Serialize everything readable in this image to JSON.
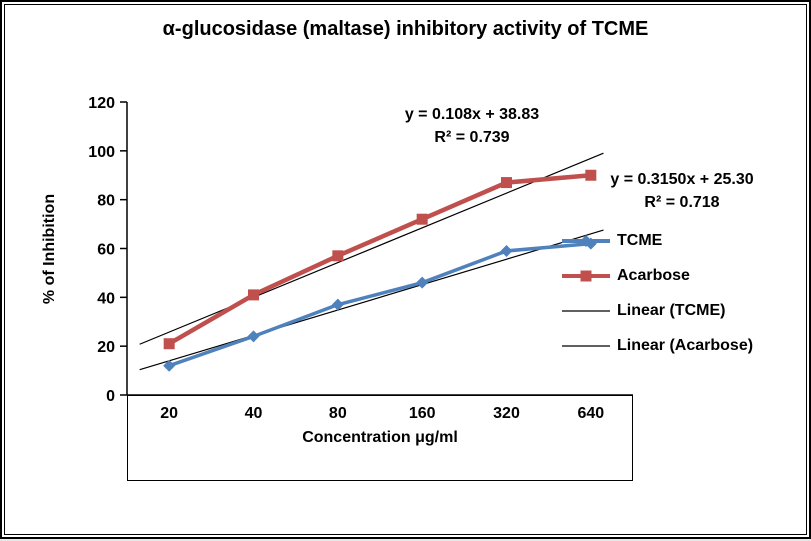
{
  "chart_data": {
    "type": "line",
    "title": "α-glucosidase (maltase) inhibitory activity of TCME",
    "xlabel": "Concentration μg/ml",
    "ylabel": "% of Inhibition",
    "categories": [
      "20",
      "40",
      "80",
      "160",
      "320",
      "640"
    ],
    "yticks": [
      0,
      20,
      40,
      60,
      80,
      100,
      120
    ],
    "ylim": [
      0,
      120
    ],
    "grid": false,
    "legend_position": "right",
    "series": [
      {
        "name": "TCME",
        "color": "#4F81BD",
        "marker": "diamond",
        "line_width": 3.5,
        "values": [
          12,
          24,
          37,
          46,
          59,
          62
        ],
        "trendline": true
      },
      {
        "name": "Acarbose",
        "color": "#C0504D",
        "marker": "square",
        "line_width": 4.5,
        "values": [
          21,
          41,
          57,
          72,
          87,
          90
        ],
        "trendline": true
      }
    ],
    "trendline_color": "#000000",
    "legend": [
      {
        "label": "TCME",
        "marker": "diamond",
        "color": "#4F81BD",
        "thick": true
      },
      {
        "label": "Acarbose",
        "marker": "square",
        "color": "#C0504D",
        "thick": true
      },
      {
        "label": "Linear (TCME)",
        "marker": "line",
        "color": "#000000",
        "thick": false
      },
      {
        "label": "Linear (Acarbose)",
        "marker": "line",
        "color": "#000000",
        "thick": false
      }
    ],
    "annotations": [
      {
        "line1": "y = 0.108x + 38.83",
        "line2": "R² = 0.739"
      },
      {
        "line1": "y = 0.3150x + 25.30",
        "line2": "R² = 0.718"
      }
    ]
  }
}
